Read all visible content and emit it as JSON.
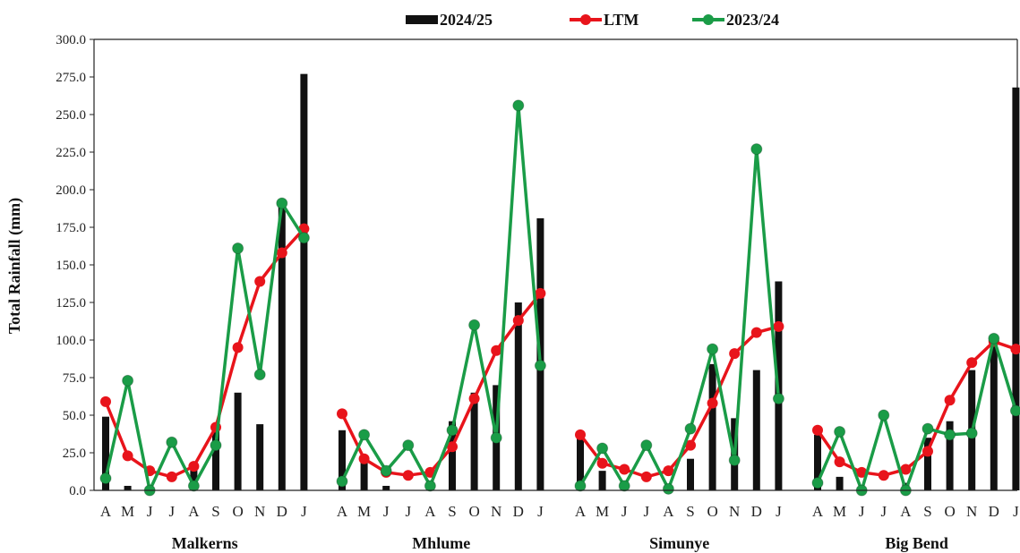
{
  "chart_data": {
    "type": "bar",
    "ylabel": "Total Rainfall (mm)",
    "ylim": [
      0,
      300
    ],
    "yticks": [
      "0.0",
      "25.0",
      "50.0",
      "75.0",
      "100.0",
      "125.0",
      "150.0",
      "175.0",
      "200.0",
      "225.0",
      "250.0",
      "275.0",
      "300.0"
    ],
    "months": [
      "A",
      "M",
      "J",
      "J",
      "A",
      "S",
      "O",
      "N",
      "D",
      "J"
    ],
    "legend": [
      "2024/25",
      "LTM",
      "2023/24"
    ],
    "legend_position": "top-center",
    "grid": false,
    "colors": {
      "bars": "#111111",
      "ltm": "#e8141b",
      "prev": "#1a9c47"
    },
    "groups": [
      {
        "name": "Malkerns",
        "series": [
          {
            "name": "2024/25",
            "type": "bar",
            "values": [
              49,
              3,
              0,
              0,
              16,
              41,
              65,
              44,
              190,
              277
            ]
          },
          {
            "name": "LTM",
            "type": "line",
            "values": [
              59,
              23,
              13,
              9,
              16,
              42,
              95,
              139,
              158,
              174
            ]
          },
          {
            "name": "2023/24",
            "type": "line",
            "values": [
              8,
              73,
              0,
              32,
              3,
              30,
              161,
              77,
              191,
              168
            ]
          }
        ]
      },
      {
        "name": "Mhlume",
        "series": [
          {
            "name": "2024/25",
            "type": "bar",
            "values": [
              40,
              20,
              3,
              0,
              5,
              46,
              65,
              70,
              125,
              181
            ]
          },
          {
            "name": "LTM",
            "type": "line",
            "values": [
              51,
              21,
              12,
              10,
              12,
              29,
              61,
              93,
              113,
              131
            ]
          },
          {
            "name": "2023/24",
            "type": "line",
            "values": [
              6,
              37,
              13,
              30,
              3,
              40,
              110,
              35,
              256,
              83
            ]
          }
        ]
      },
      {
        "name": "Simunye",
        "series": [
          {
            "name": "2024/25",
            "type": "bar",
            "values": [
              35,
              13,
              0,
              0,
              0,
              21,
              84,
              48,
              80,
              139
            ]
          },
          {
            "name": "LTM",
            "type": "line",
            "values": [
              37,
              18,
              14,
              9,
              13,
              30,
              58,
              91,
              105,
              109
            ]
          },
          {
            "name": "2023/24",
            "type": "line",
            "values": [
              3,
              28,
              3,
              30,
              1,
              41,
              94,
              20,
              227,
              61
            ]
          }
        ]
      },
      {
        "name": "Big Bend",
        "series": [
          {
            "name": "2024/25",
            "type": "bar",
            "values": [
              37,
              9,
              0,
              0,
              5,
              35,
              46,
              80,
              100,
              268
            ]
          },
          {
            "name": "LTM",
            "type": "line",
            "values": [
              40,
              19,
              12,
              10,
              14,
              26,
              60,
              85,
              99,
              94
            ]
          },
          {
            "name": "2023/24",
            "type": "line",
            "values": [
              5,
              39,
              0,
              50,
              0,
              41,
              37,
              38,
              101,
              53
            ]
          }
        ]
      }
    ]
  }
}
